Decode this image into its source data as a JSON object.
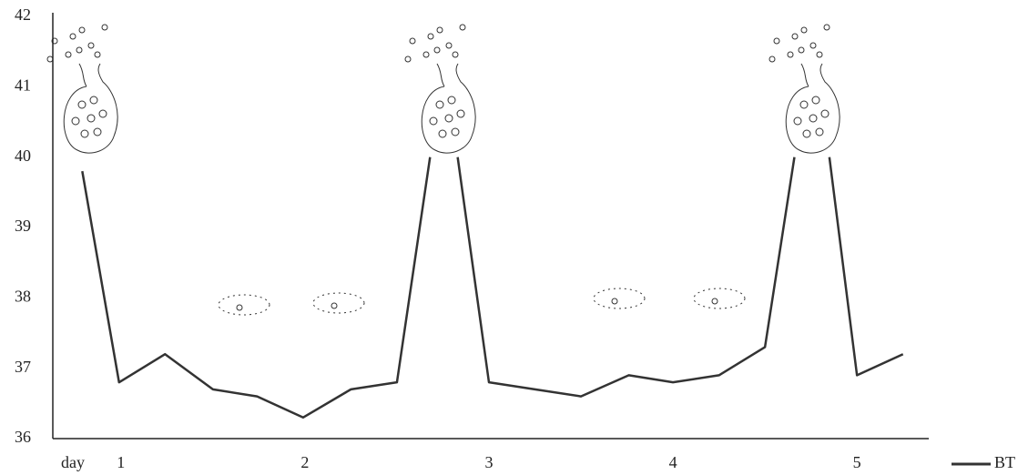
{
  "chart_data": {
    "type": "line",
    "xlabel": "day",
    "x": [
      0.79,
      0.99,
      1.24,
      1.5,
      1.74,
      1.99,
      2.25,
      2.5,
      2.68,
      2.75,
      2.83,
      3.0,
      3.25,
      3.5,
      3.76,
      4.0,
      4.25,
      4.5,
      4.66,
      4.75,
      4.85,
      5.0,
      5.25
    ],
    "series": [
      {
        "name": "BT",
        "color": "#333333",
        "values": [
          39.8,
          36.8,
          37.2,
          36.7,
          36.6,
          36.3,
          36.7,
          36.8,
          40.0,
          null,
          40.0,
          36.8,
          36.7,
          36.6,
          36.9,
          36.8,
          36.9,
          37.3,
          40.0,
          null,
          40.0,
          36.9,
          37.2
        ]
      }
    ],
    "xlim": [
      0.63,
      5.39
    ],
    "xticks": [
      1,
      2,
      3,
      4,
      5
    ],
    "ylim": [
      36,
      42
    ],
    "yticks": [
      36,
      37,
      38,
      39,
      40,
      41,
      42
    ],
    "grid": false,
    "legend": "bottom-right"
  }
}
